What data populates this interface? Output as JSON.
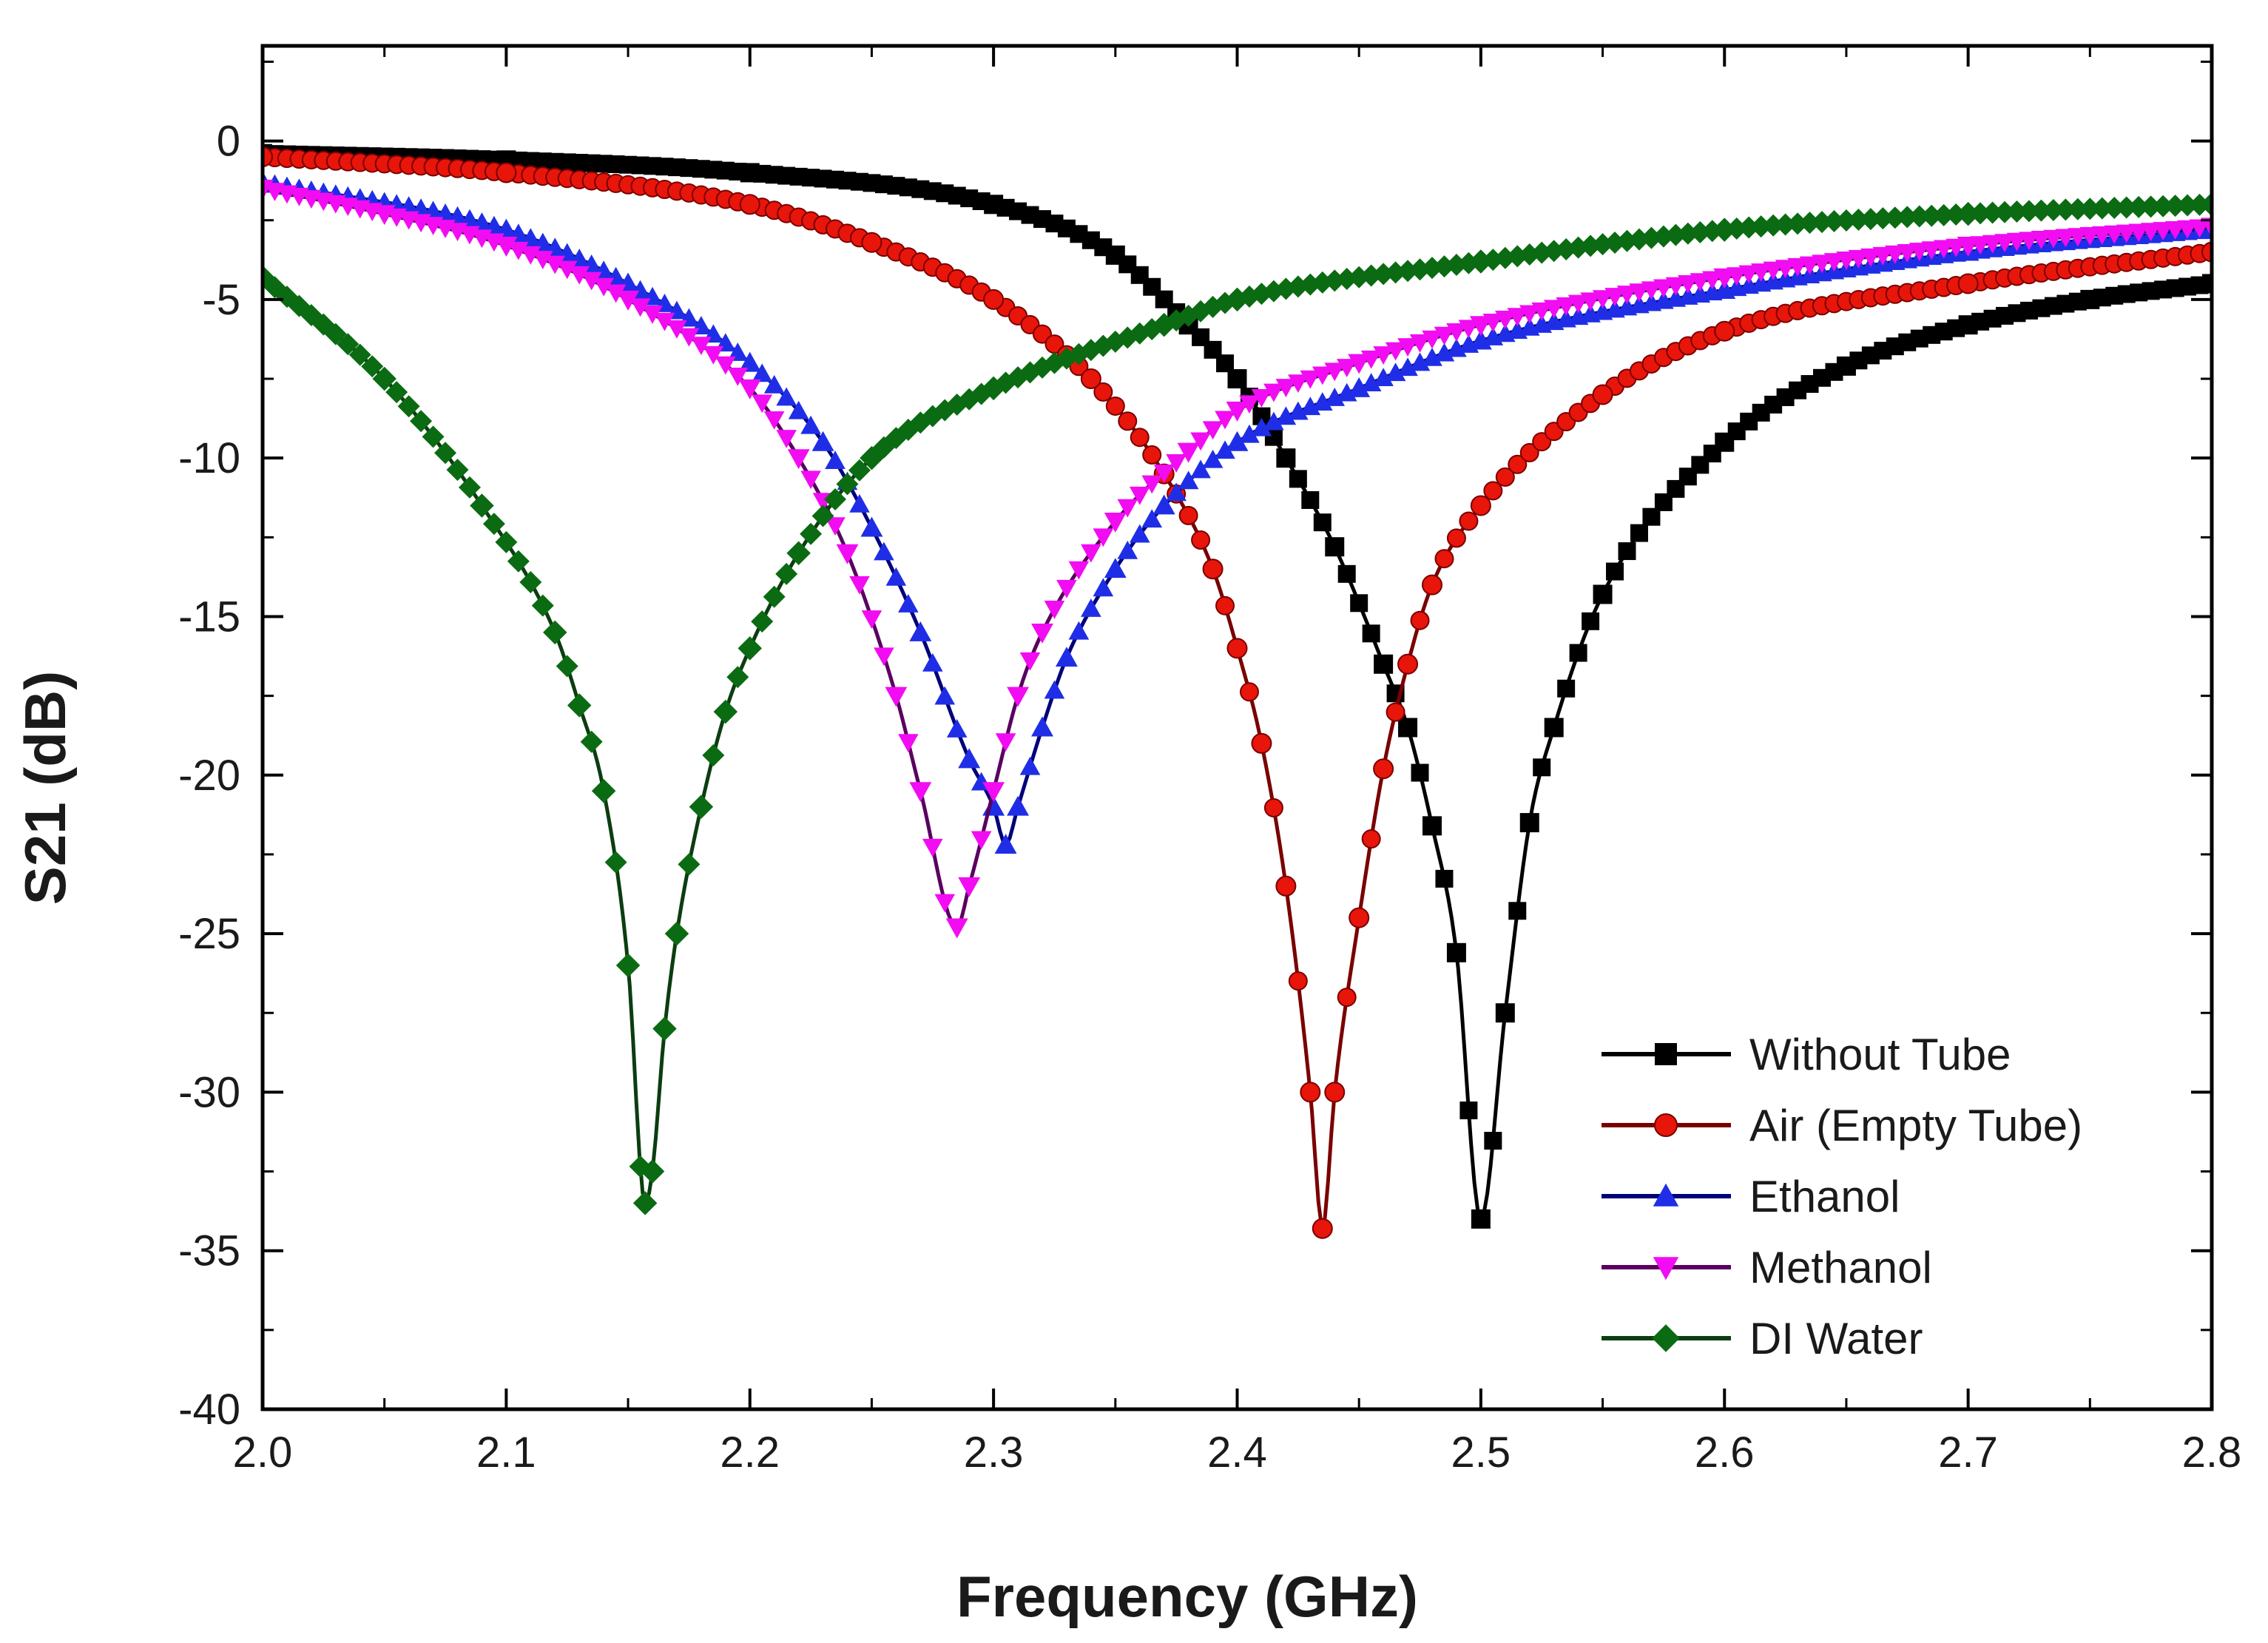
{
  "chart_data": {
    "type": "line",
    "title": "",
    "xlabel": "Frequency (GHz)",
    "ylabel": "S21 (dB)",
    "xlim": [
      2.0,
      2.8
    ],
    "ylim": [
      -40,
      3
    ],
    "xticks": [
      2.0,
      2.1,
      2.2,
      2.3,
      2.4,
      2.5,
      2.6,
      2.7,
      2.8
    ],
    "xtick_labels": [
      "2.0",
      "2.1",
      "2.2",
      "2.3",
      "2.4",
      "2.5",
      "2.6",
      "2.7",
      "2.8"
    ],
    "yticks": [
      0,
      -5,
      -10,
      -15,
      -20,
      -25,
      -30,
      -35,
      -40
    ],
    "ytick_labels": [
      "0",
      "-5",
      "-10",
      "-15",
      "-20",
      "-25",
      "-30",
      "-35",
      "-40"
    ],
    "grid": false,
    "legend_position": "bottom-right",
    "series": [
      {
        "name": "Without Tube",
        "color": "#000000",
        "marker": "square",
        "x": [
          2.0,
          2.1,
          2.2,
          2.3,
          2.35,
          2.38,
          2.4,
          2.42,
          2.44,
          2.46,
          2.47,
          2.48,
          2.49,
          2.5,
          2.51,
          2.52,
          2.53,
          2.55,
          2.6,
          2.65,
          2.7,
          2.75,
          2.8
        ],
        "y": [
          -0.4,
          -0.6,
          -1.0,
          -2.0,
          -3.6,
          -5.8,
          -7.5,
          -10.0,
          -12.8,
          -16.5,
          -18.5,
          -21.6,
          -25.6,
          -34.0,
          -27.5,
          -21.5,
          -18.5,
          -14.3,
          -9.5,
          -7.1,
          -5.8,
          -5.0,
          -4.5
        ]
      },
      {
        "name": "Air (Empty Tube)",
        "color": "#e8150b",
        "marker": "circle",
        "x": [
          2.0,
          2.1,
          2.2,
          2.25,
          2.3,
          2.34,
          2.37,
          2.39,
          2.4,
          2.41,
          2.42,
          2.43,
          2.435,
          2.44,
          2.45,
          2.46,
          2.47,
          2.48,
          2.5,
          2.55,
          2.6,
          2.7,
          2.8
        ],
        "y": [
          -0.5,
          -1.0,
          -2.0,
          -3.2,
          -5.0,
          -7.5,
          -10.5,
          -13.5,
          -16.0,
          -19.0,
          -23.5,
          -30.0,
          -34.3,
          -30.0,
          -24.5,
          -19.8,
          -16.5,
          -14.0,
          -11.5,
          -8.0,
          -6.0,
          -4.5,
          -3.5
        ]
      },
      {
        "name": "Ethanol",
        "color": "#1f2ee6",
        "marker": "triangle-up",
        "x": [
          2.0,
          2.1,
          2.15,
          2.2,
          2.23,
          2.25,
          2.27,
          2.29,
          2.3,
          2.305,
          2.31,
          2.32,
          2.33,
          2.35,
          2.37,
          2.4,
          2.45,
          2.5,
          2.6,
          2.7,
          2.8
        ],
        "y": [
          -1.3,
          -2.8,
          -4.5,
          -7.0,
          -9.5,
          -12.2,
          -15.5,
          -19.5,
          -21.0,
          -22.2,
          -21.0,
          -18.5,
          -16.3,
          -13.5,
          -11.5,
          -9.5,
          -7.8,
          -6.3,
          -4.7,
          -3.5,
          -2.8
        ]
      },
      {
        "name": "Methanol",
        "color": "#f20cf2",
        "marker": "triangle-down",
        "x": [
          2.0,
          2.05,
          2.1,
          2.15,
          2.2,
          2.22,
          2.24,
          2.26,
          2.27,
          2.285,
          2.29,
          2.3,
          2.31,
          2.32,
          2.35,
          2.38,
          2.4,
          2.45,
          2.5,
          2.6,
          2.7,
          2.8
        ],
        "y": [
          -1.5,
          -2.3,
          -3.3,
          -5.0,
          -7.8,
          -10.0,
          -13.0,
          -17.5,
          -20.5,
          -24.8,
          -23.5,
          -20.5,
          -17.5,
          -15.5,
          -12.0,
          -9.8,
          -8.5,
          -7.0,
          -5.8,
          -4.3,
          -3.3,
          -2.7
        ]
      },
      {
        "name": "DI Water",
        "color": "#0b6b12",
        "marker": "diamond",
        "x": [
          2.0,
          2.05,
          2.09,
          2.12,
          2.13,
          2.14,
          2.15,
          2.157,
          2.16,
          2.165,
          2.17,
          2.18,
          2.19,
          2.2,
          2.22,
          2.25,
          2.3,
          2.37,
          2.4,
          2.5,
          2.6,
          2.7,
          2.8
        ],
        "y": [
          -4.3,
          -7.5,
          -11.5,
          -15.5,
          -17.8,
          -20.5,
          -26.0,
          -33.5,
          -32.5,
          -28.0,
          -25.0,
          -21.0,
          -18.0,
          -16.0,
          -13.0,
          -10.0,
          -7.8,
          -5.8,
          -5.0,
          -3.8,
          -2.8,
          -2.3,
          -2.0
        ]
      }
    ]
  }
}
